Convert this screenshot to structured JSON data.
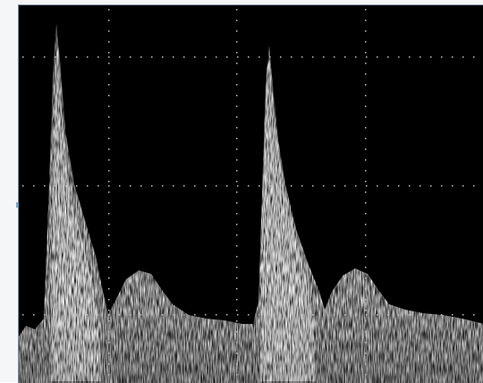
{
  "image": {
    "subject": "spectral-doppler-waveform",
    "colors": {
      "background": "#000000",
      "waveform": "#e6e6e6",
      "grid_dots": "#bfbfbf",
      "frame": "#f4f6f8",
      "marker": "#6fa8d8"
    },
    "peaks_visible": 2,
    "grid": "dotted"
  }
}
